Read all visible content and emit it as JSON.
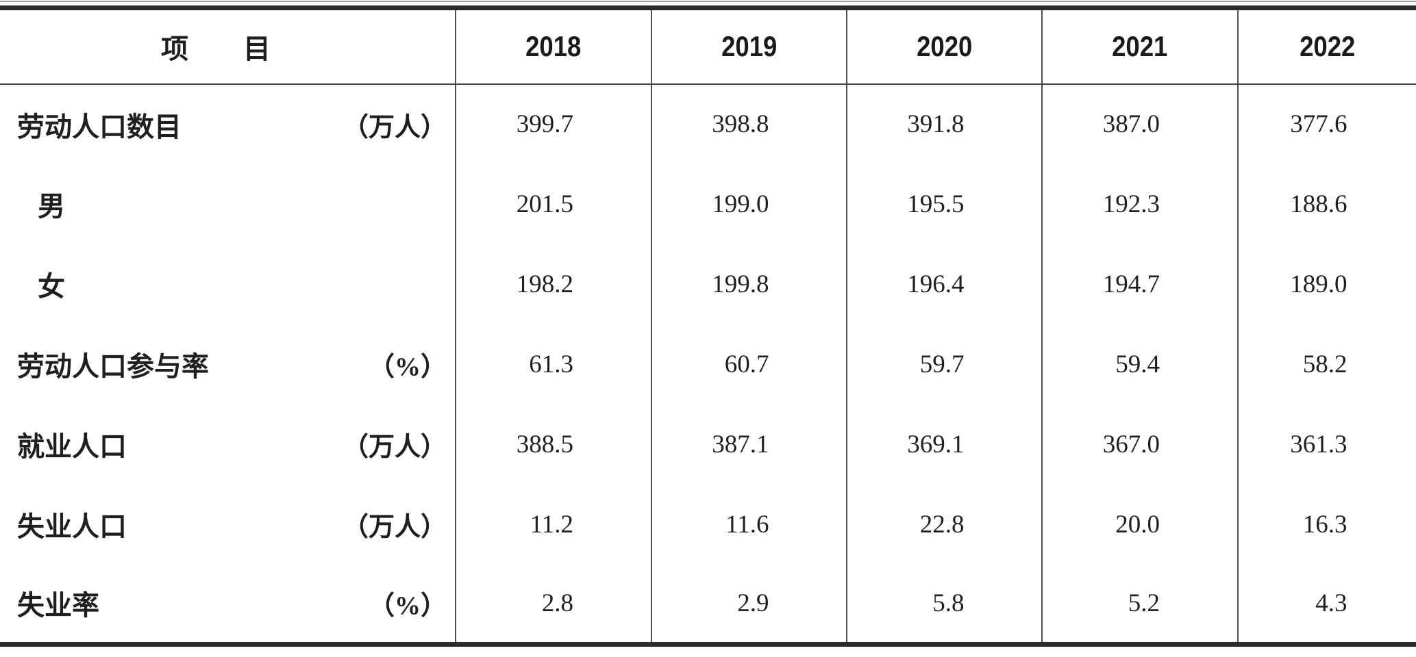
{
  "table": {
    "header": {
      "item_label": "项　目",
      "years": [
        "2018",
        "2019",
        "2020",
        "2021",
        "2022"
      ]
    },
    "rows": [
      {
        "label": "劳动人口数目",
        "unit": "（万人）",
        "indent": false,
        "values": [
          "399.7",
          "398.8",
          "391.8",
          "387.0",
          "377.6"
        ]
      },
      {
        "label": "男",
        "unit": "",
        "indent": true,
        "values": [
          "201.5",
          "199.0",
          "195.5",
          "192.3",
          "188.6"
        ]
      },
      {
        "label": "女",
        "unit": "",
        "indent": true,
        "values": [
          "198.2",
          "199.8",
          "196.4",
          "194.7",
          "189.0"
        ]
      },
      {
        "label": "劳动人口参与率",
        "unit": "（%）",
        "indent": false,
        "values": [
          "61.3",
          "60.7",
          "59.7",
          "59.4",
          "58.2"
        ]
      },
      {
        "label": "就业人口",
        "unit": "（万人）",
        "indent": false,
        "values": [
          "388.5",
          "387.1",
          "369.1",
          "367.0",
          "361.3"
        ]
      },
      {
        "label": "失业人口",
        "unit": "（万人）",
        "indent": false,
        "values": [
          "11.2",
          "11.6",
          "22.8",
          "20.0",
          "16.3"
        ]
      },
      {
        "label": "失业率",
        "unit": "（%）",
        "indent": false,
        "values": [
          "2.8",
          "2.9",
          "5.8",
          "5.2",
          "4.3"
        ]
      }
    ],
    "colors": {
      "text": "#1f1f1f",
      "rule_thick": "#2b2b2b",
      "rule_thin": "#4f4f4f"
    }
  },
  "chart_data": {
    "type": "table",
    "categories": [
      "2018",
      "2019",
      "2020",
      "2021",
      "2022"
    ],
    "series": [
      {
        "name": "劳动人口数目（万人）",
        "values": [
          399.7,
          398.8,
          391.8,
          387.0,
          377.6
        ]
      },
      {
        "name": "男",
        "values": [
          201.5,
          199.0,
          195.5,
          192.3,
          188.6
        ]
      },
      {
        "name": "女",
        "values": [
          198.2,
          199.8,
          196.4,
          194.7,
          189.0
        ]
      },
      {
        "name": "劳动人口参与率（%）",
        "values": [
          61.3,
          60.7,
          59.7,
          59.4,
          58.2
        ]
      },
      {
        "name": "就业人口（万人）",
        "values": [
          388.5,
          387.1,
          369.1,
          367.0,
          361.3
        ]
      },
      {
        "name": "失业人口（万人）",
        "values": [
          11.2,
          11.6,
          22.8,
          20.0,
          16.3
        ]
      },
      {
        "name": "失业率（%）",
        "values": [
          2.8,
          2.9,
          5.8,
          5.2,
          4.3
        ]
      }
    ]
  }
}
